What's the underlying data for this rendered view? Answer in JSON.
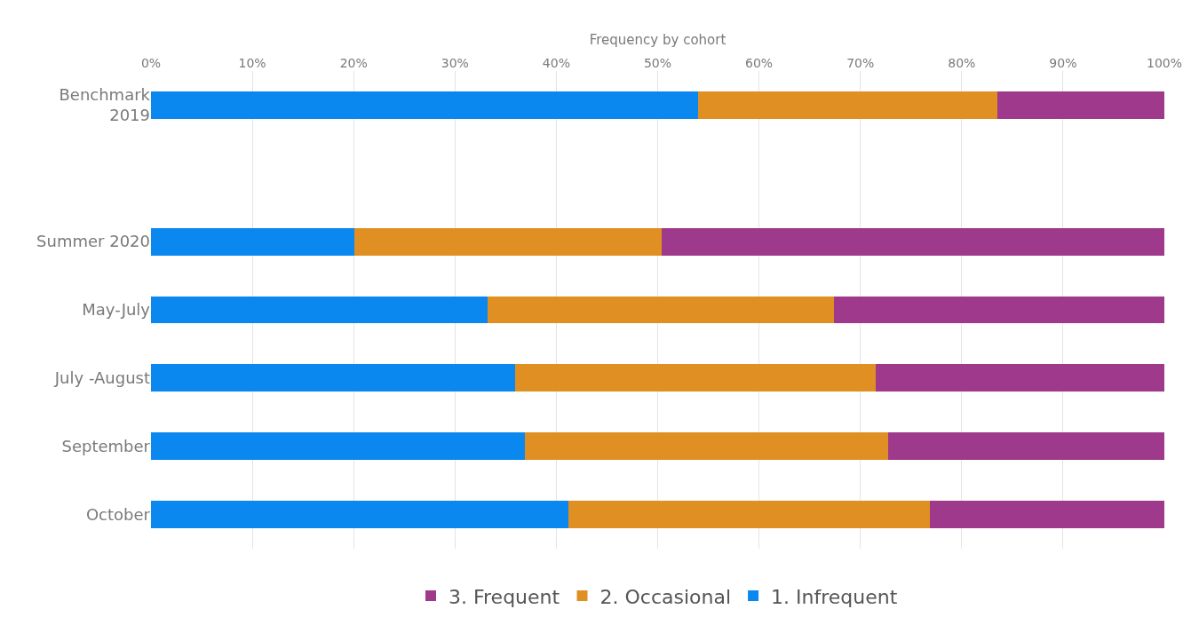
{
  "chart_data": {
    "type": "bar",
    "orientation": "horizontal",
    "stacked": true,
    "xlabel": "Frequency by cohort",
    "categories": [
      "Benchmark\n2019",
      null,
      "Summer 2020",
      "May-July",
      "July -August",
      "September",
      "October"
    ],
    "series": [
      {
        "name": "1. Infrequent",
        "color": "#0a88f0",
        "values": [
          54,
          null,
          20.1,
          33.2,
          35.9,
          36.9,
          41.2
        ]
      },
      {
        "name": "2. Occasional",
        "color": "#e09022",
        "values": [
          29.5,
          null,
          30.3,
          34.2,
          35.6,
          35.8,
          35.7
        ]
      },
      {
        "name": "3. Frequent",
        "color": "#9e398c",
        "values": [
          16.5,
          null,
          49.6,
          32.6,
          28.5,
          27.3,
          23.1
        ]
      }
    ],
    "xlim": [
      0,
      100
    ],
    "xticks": [
      {
        "value": 0,
        "label": "0%"
      },
      {
        "value": 10,
        "label": "10%"
      },
      {
        "value": 20,
        "label": "20%"
      },
      {
        "value": 30,
        "label": "30%"
      },
      {
        "value": 40,
        "label": "40%"
      },
      {
        "value": 50,
        "label": "50%"
      },
      {
        "value": 60,
        "label": "60%"
      },
      {
        "value": 70,
        "label": "70%"
      },
      {
        "value": 80,
        "label": "80%"
      },
      {
        "value": 90,
        "label": "90%"
      },
      {
        "value": 100,
        "label": "100%"
      }
    ],
    "grid": "x",
    "legend": "bottom"
  }
}
